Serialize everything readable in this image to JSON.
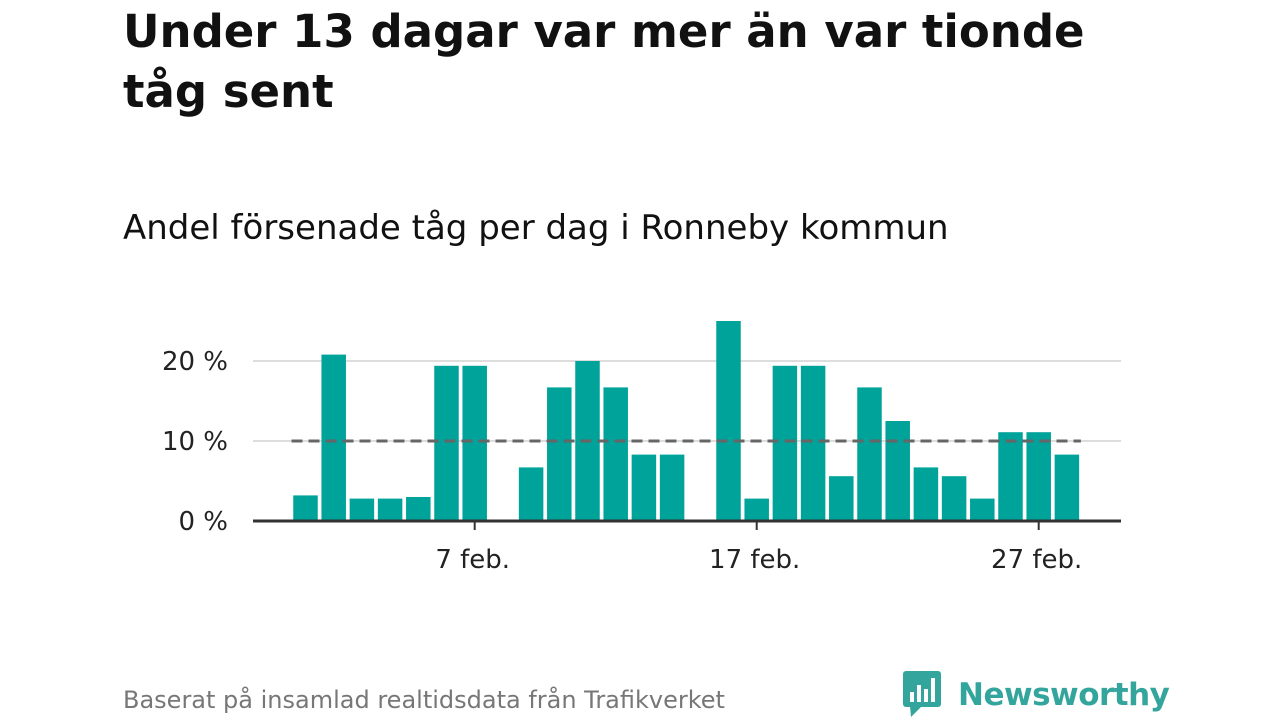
{
  "title": "Under 13 dagar var mer än var tionde tåg sent",
  "subtitle": "Andel försenade tåg per dag i Ronneby kommun",
  "footer": "Baserat på insamlad realtidsdata från Trafikverket",
  "brand": {
    "name": "Newsworthy",
    "color": "#34a59c",
    "icon": "bar-chart-speech-bubble-icon"
  },
  "colors": {
    "bar": "#00a39a",
    "grid": "#dddddd",
    "reference": "#666666",
    "axis": "#333333"
  },
  "chart_data": {
    "type": "bar",
    "title": "Andel försenade tåg per dag i Ronneby kommun",
    "xlabel": "",
    "ylabel": "",
    "unit": "%",
    "ylim": [
      0,
      25
    ],
    "yticks": [
      0,
      10,
      20
    ],
    "ytick_labels": [
      "0 %",
      "10 %",
      "20 %"
    ],
    "xtick_labels": [
      "7 feb.",
      "17 feb.",
      "27 feb."
    ],
    "xtick_days": [
      7,
      17,
      27
    ],
    "reference_line": 10,
    "grid": true,
    "legend": "none",
    "days": [
      1,
      2,
      3,
      4,
      5,
      6,
      7,
      8,
      9,
      10,
      11,
      12,
      13,
      14,
      15,
      16,
      17,
      18,
      19,
      20,
      21,
      22,
      23,
      24,
      25,
      26,
      27,
      28,
      29
    ],
    "values": [
      3.2,
      20.8,
      2.8,
      2.8,
      3.0,
      19.4,
      19.4,
      null,
      6.7,
      16.7,
      20.0,
      16.7,
      8.3,
      8.3,
      null,
      25.0,
      2.8,
      19.4,
      19.4,
      5.6,
      16.7,
      12.5,
      6.7,
      5.6,
      2.8,
      11.1,
      11.1,
      8.3,
      null
    ]
  }
}
